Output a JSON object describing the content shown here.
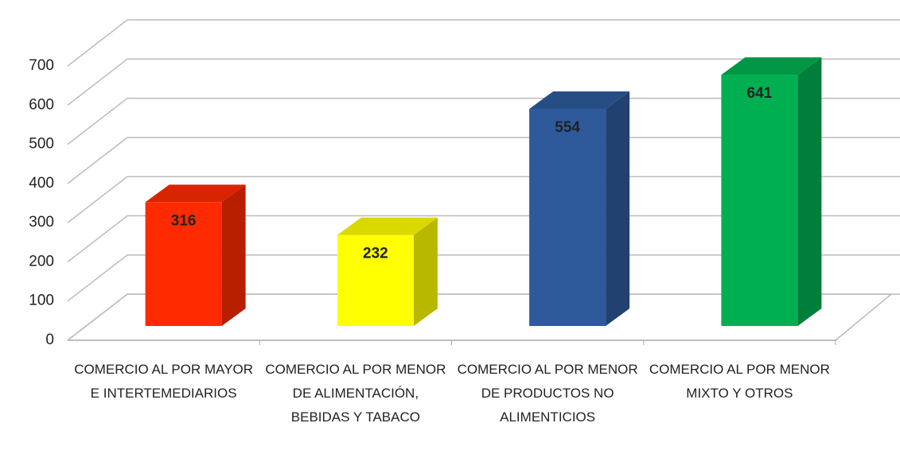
{
  "chart_data": {
    "type": "bar3d",
    "categories": [
      "COMERCIO AL POR MAYOR E INTERTEMEDIARIOS",
      "COMERCIO AL POR MENOR DE ALIMENTACIÓN, BEBIDAS Y TABACO",
      "COMERCIO AL POR MENOR DE PRODUCTOS NO ALIMENTICIOS",
      "COMERCIO AL POR MENOR MIXTO Y OTROS"
    ],
    "values": [
      316,
      232,
      554,
      641
    ],
    "colors": [
      "#ff2a00",
      "#ffff00",
      "#2e5a9c",
      "#00b050"
    ],
    "ylim": [
      0,
      700
    ],
    "yticks": [
      0,
      100,
      200,
      300,
      400,
      500,
      600,
      700
    ],
    "grid": true
  }
}
